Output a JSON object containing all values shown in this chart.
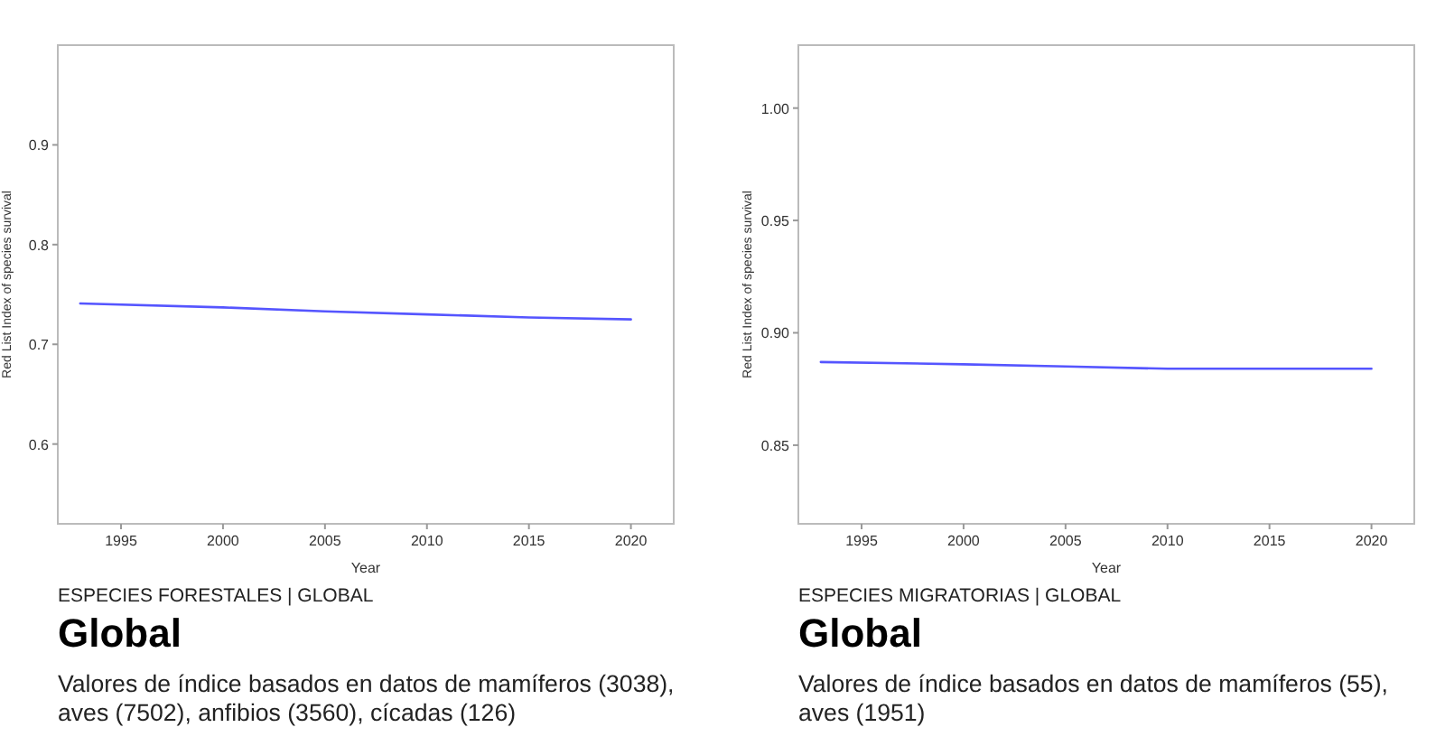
{
  "chart_data": [
    {
      "type": "line",
      "subtitle": "ESPECIES FORESTALES | GLOBAL",
      "title": "Global",
      "xlabel": "Year",
      "ylabel": "Red List Index of species survival",
      "annotations": [
        "Valores de índice basados en datos de mamíferos (3038), aves (7502), anfibios (3560), cícadas (126)"
      ],
      "x": [
        1993,
        2000,
        2005,
        2010,
        2015,
        2020
      ],
      "xlim": [
        1991.9,
        2022.1
      ],
      "xticks": [
        1995,
        2000,
        2005,
        2010,
        2015,
        2020
      ],
      "ylim": [
        0.52,
        1.0
      ],
      "yticks": [
        0.6,
        0.7,
        0.8,
        0.9
      ],
      "series": [
        {
          "color": "#5555ff",
          "values": [
            0.741,
            0.737,
            0.733,
            0.73,
            0.727,
            0.725
          ]
        }
      ]
    },
    {
      "type": "line",
      "subtitle": "ESPECIES MIGRATORIAS | GLOBAL",
      "title": "Global",
      "xlabel": "Year",
      "ylabel": "Red List Index of species survival",
      "annotations": [
        "Valores de índice basados en datos de mamíferos (55), aves (1951)"
      ],
      "x": [
        1993,
        2000,
        2005,
        2010,
        2015,
        2020
      ],
      "xlim": [
        1991.9,
        2022.1
      ],
      "xticks": [
        1995,
        2000,
        2005,
        2010,
        2015,
        2020
      ],
      "ylim": [
        0.815,
        1.028
      ],
      "yticks": [
        {
          "value": 0.85,
          "label": "0.85"
        },
        {
          "value": 0.9,
          "label": "0.90"
        },
        {
          "value": 0.95,
          "label": "0.95"
        },
        {
          "value": 1.0,
          "label": "1.00"
        }
      ],
      "series": [
        {
          "color": "#5555ff",
          "values": [
            0.887,
            0.886,
            0.885,
            0.884,
            0.884,
            0.884
          ]
        }
      ]
    }
  ]
}
